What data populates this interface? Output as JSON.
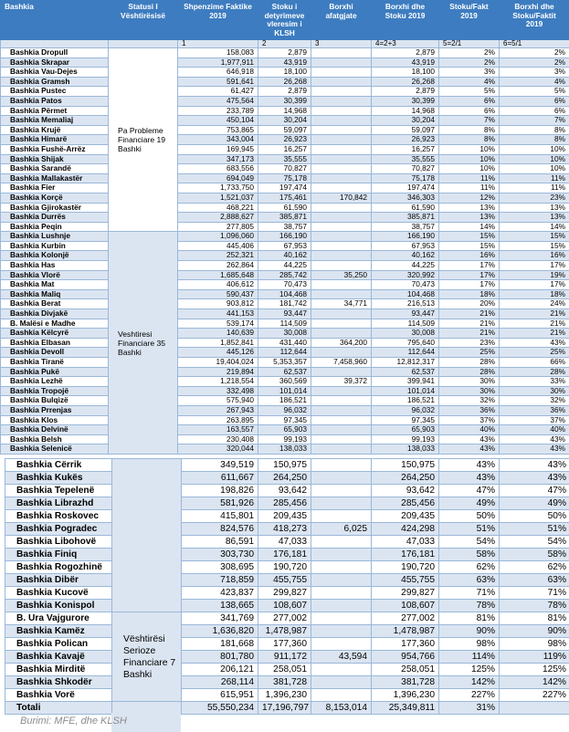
{
  "colors": {
    "header": "#3d7cc0",
    "band": "#dbe5f1",
    "border": "#9bb7d9"
  },
  "columns": [
    "Bashkia",
    "Statusi I Vështirësisë",
    "Shpenzime Faktike 2019",
    "Stoku i detyrimeve vleresim i KLSH",
    "Borxhi afatgjate",
    "Borxhi dhe Stoku 2019",
    "Stoku/Fakt 2019",
    "Borxhi dhe Stoku/Faktit 2019"
  ],
  "index_row": [
    "",
    "",
    "1",
    "2",
    "3",
    "4=2+3",
    "5=2/1",
    "6=5/1"
  ],
  "table1": {
    "groups": [
      {
        "label": "Pa Probleme Financiare 19 Bashki",
        "start": 0,
        "span": 19,
        "shade": "w"
      },
      {
        "label": "Veshtiresi Financiare 35 Bashki",
        "start": 19,
        "span": 23,
        "shade": "b"
      }
    ],
    "rows": [
      [
        "Bashkia Dropull",
        "158,083",
        "2,879",
        "",
        "2,879",
        "2%",
        "2%"
      ],
      [
        "Bashkia Skrapar",
        "1,977,911",
        "43,919",
        "",
        "43,919",
        "2%",
        "2%"
      ],
      [
        "Bashkia Vau-Dejes",
        "646,918",
        "18,100",
        "",
        "18,100",
        "3%",
        "3%"
      ],
      [
        "Bashkia Gramsh",
        "591,641",
        "26,268",
        "",
        "26,268",
        "4%",
        "4%"
      ],
      [
        "Bashkia Pustec",
        "61,427",
        "2,879",
        "",
        "2,879",
        "5%",
        "5%"
      ],
      [
        "Bashkia Patos",
        "475,564",
        "30,399",
        "",
        "30,399",
        "6%",
        "6%"
      ],
      [
        "Bashkia Përmet",
        "233,789",
        "14,968",
        "",
        "14,968",
        "6%",
        "6%"
      ],
      [
        "Bashkia Memaliaj",
        "450,104",
        "30,204",
        "",
        "30,204",
        "7%",
        "7%"
      ],
      [
        "Bashkia Krujë",
        "753,865",
        "59,097",
        "",
        "59,097",
        "8%",
        "8%"
      ],
      [
        "Bashkia Himarë",
        "343,004",
        "26,923",
        "",
        "26,923",
        "8%",
        "8%"
      ],
      [
        "Bashkia Fushë-Arrëz",
        "169,945",
        "16,257",
        "",
        "16,257",
        "10%",
        "10%"
      ],
      [
        "Bashkia Shijak",
        "347,173",
        "35,555",
        "",
        "35,555",
        "10%",
        "10%"
      ],
      [
        "Bashkia Sarandë",
        "683,556",
        "70,827",
        "",
        "70,827",
        "10%",
        "10%"
      ],
      [
        "Bashkia Mallakastër",
        "694,049",
        "75,178",
        "",
        "75,178",
        "11%",
        "11%"
      ],
      [
        "Bashkia Fier",
        "1,733,750",
        "197,474",
        "",
        "197,474",
        "11%",
        "11%"
      ],
      [
        "Bashkia Korçë",
        "1,521,037",
        "175,461",
        "170,842",
        "346,303",
        "12%",
        "23%"
      ],
      [
        "Bashkia Gjirokastër",
        "468,221",
        "61,590",
        "",
        "61,590",
        "13%",
        "13%"
      ],
      [
        "Bashkia Durrës",
        "2,888,627",
        "385,871",
        "",
        "385,871",
        "13%",
        "13%"
      ],
      [
        "Bashkia Peqin",
        "277,805",
        "38,757",
        "",
        "38,757",
        "14%",
        "14%"
      ],
      [
        "Bashkia Lushnje",
        "1,096,060",
        "166,190",
        "",
        "166,190",
        "15%",
        "15%"
      ],
      [
        "Bashkia Kurbin",
        "445,406",
        "67,953",
        "",
        "67,953",
        "15%",
        "15%"
      ],
      [
        "Bashkia Kolonjë",
        "252,321",
        "40,162",
        "",
        "40,162",
        "16%",
        "16%"
      ],
      [
        "Bashkia Has",
        "262,864",
        "44,225",
        "",
        "44,225",
        "17%",
        "17%"
      ],
      [
        "Bashkia Vlorë",
        "1,685,648",
        "285,742",
        "35,250",
        "320,992",
        "17%",
        "19%"
      ],
      [
        "Bashkia Mat",
        "406,612",
        "70,473",
        "",
        "70,473",
        "17%",
        "17%"
      ],
      [
        "Bashkia Maliq",
        "590,437",
        "104,468",
        "",
        "104,468",
        "18%",
        "18%"
      ],
      [
        "Bashkia Berat",
        "903,812",
        "181,742",
        "34,771",
        "216,513",
        "20%",
        "24%"
      ],
      [
        "Bashkia Divjakë",
        "441,153",
        "93,447",
        "",
        "93,447",
        "21%",
        "21%"
      ],
      [
        "B. Malësi e Madhe",
        "539,174",
        "114,509",
        "",
        "114,509",
        "21%",
        "21%"
      ],
      [
        "Bashkia Këlcyrë",
        "140,639",
        "30,008",
        "",
        "30,008",
        "21%",
        "21%"
      ],
      [
        "Bashkia Elbasan",
        "1,852,841",
        "431,440",
        "364,200",
        "795,640",
        "23%",
        "43%"
      ],
      [
        "Bashkia Devoll",
        "445,126",
        "112,644",
        "",
        "112,644",
        "25%",
        "25%"
      ],
      [
        "Bashkia Tiranë",
        "19,404,024",
        "5,353,357",
        "7,458,960",
        "12,812,317",
        "28%",
        "66%"
      ],
      [
        "Bashkia Pukë",
        "219,894",
        "62,537",
        "",
        "62,537",
        "28%",
        "28%"
      ],
      [
        "Bashkia Lezhë",
        "1,218,554",
        "360,569",
        "39,372",
        "399,941",
        "30%",
        "33%"
      ],
      [
        "Bashkia Tropojë",
        "332,498",
        "101,014",
        "",
        "101,014",
        "30%",
        "30%"
      ],
      [
        "Bashkia Bulqizë",
        "575,940",
        "186,521",
        "",
        "186,521",
        "32%",
        "32%"
      ],
      [
        "Bashkia Prrenjas",
        "267,943",
        "96,032",
        "",
        "96,032",
        "36%",
        "36%"
      ],
      [
        "Bashkia Klos",
        "263,895",
        "97,345",
        "",
        "97,345",
        "37%",
        "37%"
      ],
      [
        "Bashkia Delvinë",
        "163,557",
        "65,903",
        "",
        "65,903",
        "40%",
        "40%"
      ],
      [
        "Bashkia Belsh",
        "230,408",
        "99,193",
        "",
        "99,193",
        "43%",
        "43%"
      ],
      [
        "Bashkia Selenicë",
        "320,044",
        "138,033",
        "",
        "138,033",
        "43%",
        "43%"
      ]
    ]
  },
  "table2": {
    "groups": [
      {
        "label": "",
        "start": 0,
        "span": 12,
        "shade": "b"
      },
      {
        "label": "Vështirësi Serioze Financiare 7 Bashki",
        "start": 12,
        "span": 7,
        "shade": "b"
      }
    ],
    "rows": [
      [
        "Bashkia Cërrik",
        "349,519",
        "150,975",
        "",
        "150,975",
        "43%",
        "43%"
      ],
      [
        "Bashkia Kukës",
        "611,667",
        "264,250",
        "",
        "264,250",
        "43%",
        "43%"
      ],
      [
        "Bashkia Tepelenë",
        "198,826",
        "93,642",
        "",
        "93,642",
        "47%",
        "47%"
      ],
      [
        "Bashkia Librazhd",
        "581,926",
        "285,456",
        "",
        "285,456",
        "49%",
        "49%"
      ],
      [
        "Bashkia Roskovec",
        "415,801",
        "209,435",
        "",
        "209,435",
        "50%",
        "50%"
      ],
      [
        "Bashkia Pogradec",
        "824,576",
        "418,273",
        "6,025",
        "424,298",
        "51%",
        "51%"
      ],
      [
        "Bashkia Libohovë",
        "86,591",
        "47,033",
        "",
        "47,033",
        "54%",
        "54%"
      ],
      [
        "Bashkia Finiq",
        "303,730",
        "176,181",
        "",
        "176,181",
        "58%",
        "58%"
      ],
      [
        "Bashkia Rogozhinë",
        "308,695",
        "190,720",
        "",
        "190,720",
        "62%",
        "62%"
      ],
      [
        "Bashkia Dibër",
        "718,859",
        "455,755",
        "",
        "455,755",
        "63%",
        "63%"
      ],
      [
        "Bashkia Kucovë",
        "423,837",
        "299,827",
        "",
        "299,827",
        "71%",
        "71%"
      ],
      [
        "Bashkia Konispol",
        "138,665",
        "108,607",
        "",
        "108,607",
        "78%",
        "78%"
      ],
      [
        "B. Ura Vajgurore",
        "341,769",
        "277,002",
        "",
        "277,002",
        "81%",
        "81%"
      ],
      [
        "Bashkia Kamëz",
        "1,636,820",
        "1,478,987",
        "",
        "1,478,987",
        "90%",
        "90%"
      ],
      [
        "Bashkia Polican",
        "181,668",
        "177,360",
        "",
        "177,360",
        "98%",
        "98%"
      ],
      [
        "Bashkia Kavajë",
        "801,780",
        "911,172",
        "43,594",
        "954,766",
        "114%",
        "119%"
      ],
      [
        "Bashkia Mirditë",
        "206,121",
        "258,051",
        "",
        "258,051",
        "125%",
        "125%"
      ],
      [
        "Bashkia Shkodër",
        "268,114",
        "381,728",
        "",
        "381,728",
        "142%",
        "142%"
      ],
      [
        "Bashkia Vorë",
        "615,951",
        "1,396,230",
        "",
        "1,396,230",
        "227%",
        "227%"
      ]
    ],
    "total": [
      "Totali",
      "55,550,234",
      "17,196,797",
      "8,153,014",
      "25,349,811",
      "31%",
      ""
    ]
  },
  "source": "Burimi: MFE, dhe KLSH"
}
